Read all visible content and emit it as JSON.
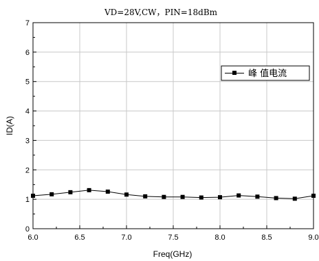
{
  "chart_data": {
    "type": "line",
    "title": "VD=28V,CW，PIN=18dBm",
    "xlabel": "Freq(GHz)",
    "ylabel": "ID(A)",
    "xlim": [
      6.0,
      9.0
    ],
    "ylim": [
      0,
      7
    ],
    "x_ticks": [
      "6.0",
      "6.5",
      "7.0",
      "7.5",
      "8.0",
      "8.5",
      "9.0"
    ],
    "y_ticks": [
      "0",
      "1",
      "2",
      "3",
      "4",
      "5",
      "6",
      "7"
    ],
    "grid": true,
    "legend_position": "right",
    "series": [
      {
        "name": "峰 值电流",
        "marker": "square",
        "color": "#000000",
        "x": [
          6.0,
          6.2,
          6.4,
          6.6,
          6.8,
          7.0,
          7.2,
          7.4,
          7.6,
          7.8,
          8.0,
          8.2,
          8.4,
          8.6,
          8.8,
          9.0
        ],
        "y": [
          1.12,
          1.17,
          1.24,
          1.31,
          1.26,
          1.16,
          1.1,
          1.08,
          1.08,
          1.06,
          1.07,
          1.13,
          1.09,
          1.04,
          1.02,
          1.12
        ]
      }
    ]
  }
}
